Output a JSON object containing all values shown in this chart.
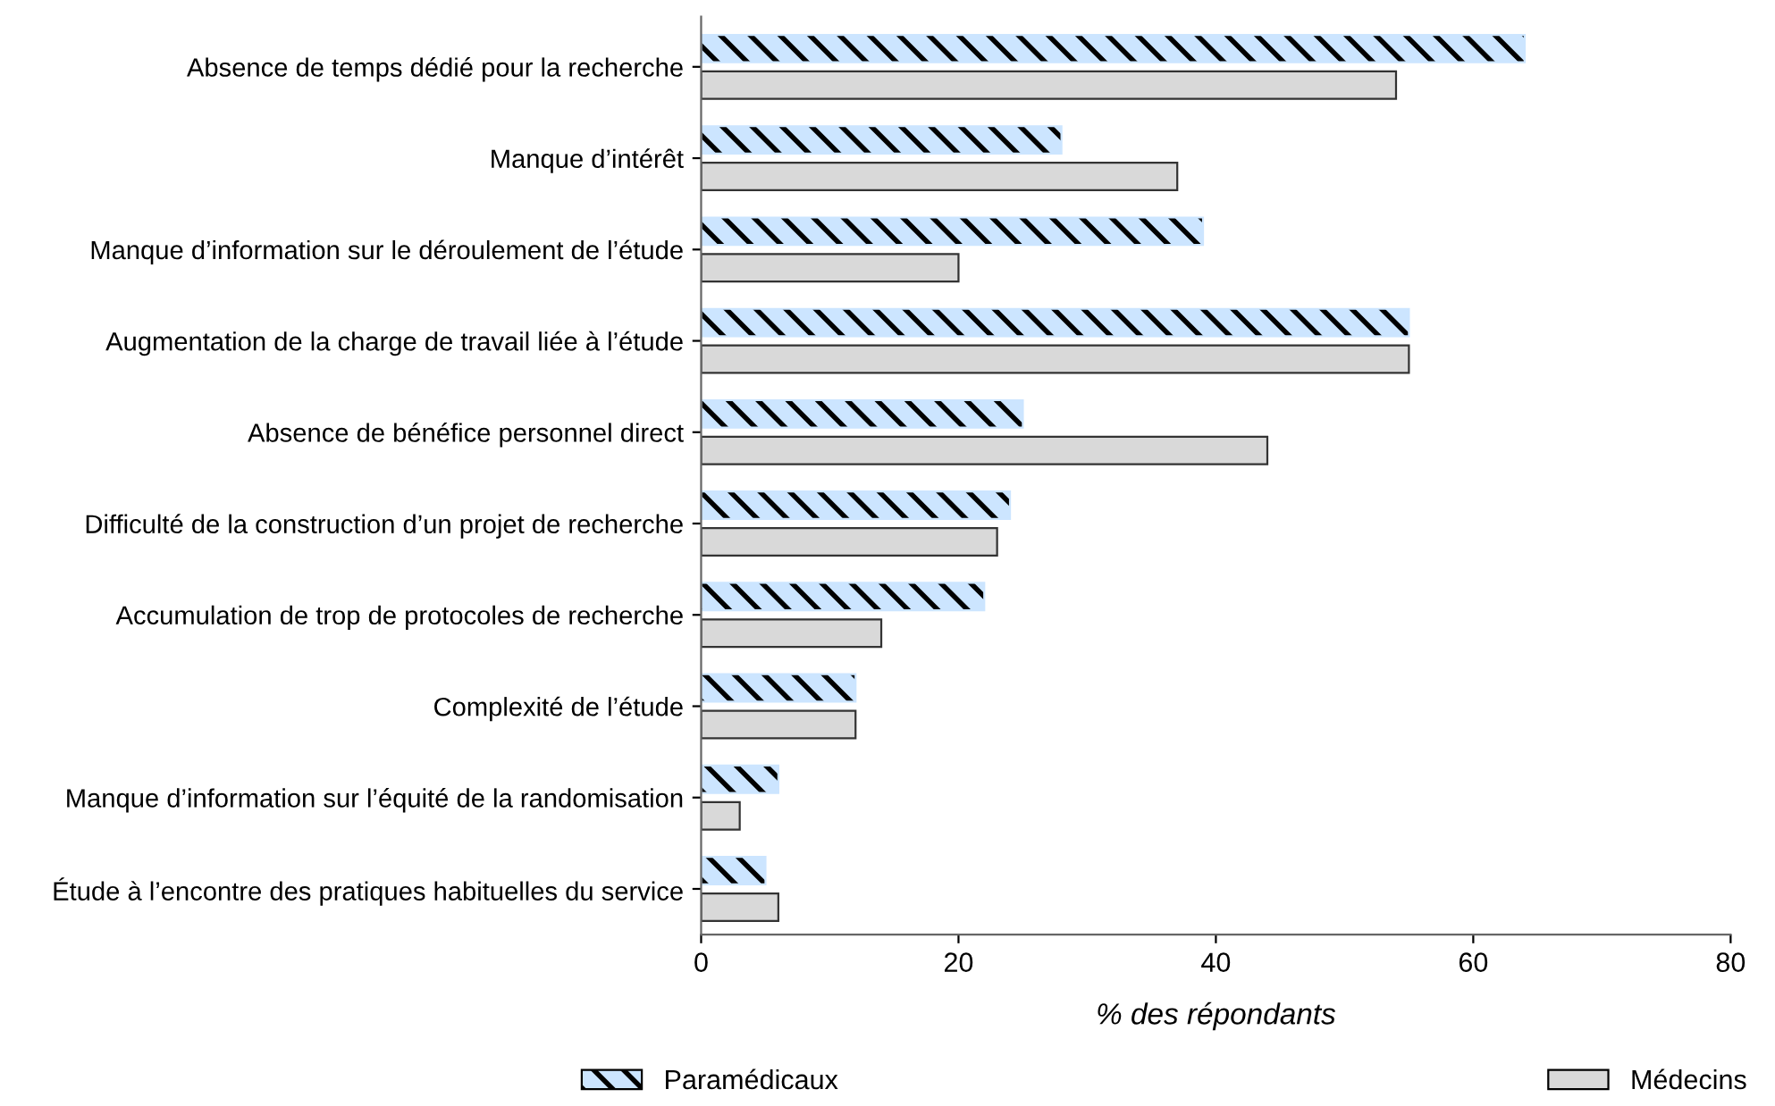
{
  "chart_data": {
    "type": "bar",
    "orientation": "horizontal",
    "xlabel": "% des répondants",
    "categories": [
      "Absence de temps dédié pour la recherche",
      "Manque d’intérêt",
      "Manque d’information sur le déroulement de l’étude",
      "Augmentation de la charge de travail liée à l’étude",
      "Absence de bénéfice personnel direct",
      "Difficulté de la construction d’un projet de recherche",
      "Accumulation de trop de protocoles de recherche",
      "Complexité de l’étude",
      "Manque d’information sur l’équité de la randomisation",
      "Étude à l’encontre des pratiques habituelles du service"
    ],
    "series": [
      {
        "name": "Paramédicaux",
        "color": "#cce5ff",
        "values": [
          64,
          28,
          39,
          55,
          25,
          24,
          22,
          12,
          6,
          5
        ]
      },
      {
        "name": "Médecins",
        "color": "#d9d9d9",
        "values": [
          54,
          37,
          20,
          55,
          44,
          23,
          14,
          12,
          3,
          6
        ]
      }
    ],
    "xlim": [
      0,
      80
    ],
    "xticks": [
      0,
      20,
      40,
      60,
      80
    ],
    "grid": false,
    "legend": "bottom"
  }
}
